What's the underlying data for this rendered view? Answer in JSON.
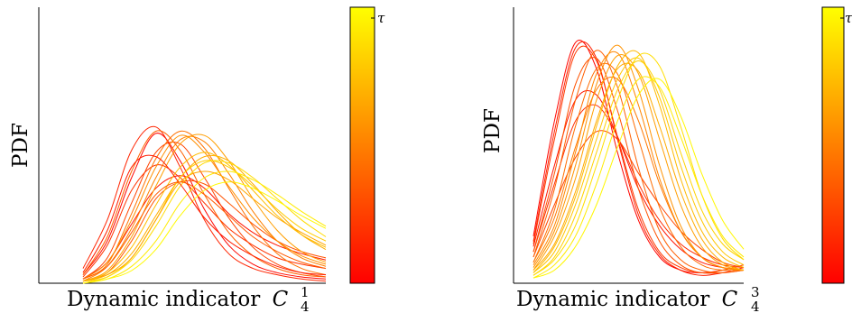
{
  "chart_data": [
    {
      "type": "line",
      "ylabel": "PDF",
      "xlabel": "Dynamic indicator",
      "xlabel_symbol": "C",
      "xlabel_subscript": "4",
      "xlabel_superscript": "1",
      "colorbar_label": "τ",
      "colormap": [
        "#ff0000",
        "#ff8000",
        "#ffff00"
      ],
      "grid": false,
      "x": [
        0,
        0.1,
        0.2,
        0.3,
        0.4,
        0.5,
        0.6,
        0.7,
        0.8,
        0.9,
        1
      ],
      "ylim": [
        0,
        1
      ],
      "series_tau": [
        0.02,
        0.08,
        0.14,
        0.2,
        0.26,
        0.32,
        0.38,
        0.44,
        0.5,
        0.56,
        0.62,
        0.68,
        0.74,
        0.8,
        0.86,
        0.92,
        0.98,
        0.11,
        0.35,
        0.65
      ],
      "series": [
        {
          "values": [
            0.04,
            0.2,
            0.5,
            0.71,
            0.58,
            0.35,
            0.18,
            0.09,
            0.05,
            0.03,
            0.02
          ]
        },
        {
          "values": [
            0.02,
            0.1,
            0.28,
            0.45,
            0.51,
            0.45,
            0.33,
            0.24,
            0.18,
            0.14,
            0.11
          ]
        },
        {
          "values": [
            0.07,
            0.3,
            0.63,
            0.74,
            0.55,
            0.3,
            0.14,
            0.07,
            0.04,
            0.02,
            0.01
          ]
        },
        {
          "values": [
            0.03,
            0.18,
            0.44,
            0.56,
            0.5,
            0.38,
            0.26,
            0.18,
            0.12,
            0.09,
            0.07
          ]
        },
        {
          "values": [
            0.02,
            0.12,
            0.38,
            0.62,
            0.66,
            0.5,
            0.31,
            0.17,
            0.09,
            0.05,
            0.03
          ]
        },
        {
          "values": [
            0.01,
            0.05,
            0.2,
            0.4,
            0.48,
            0.47,
            0.38,
            0.28,
            0.2,
            0.15,
            0.12
          ]
        },
        {
          "values": [
            0.04,
            0.22,
            0.53,
            0.72,
            0.63,
            0.42,
            0.24,
            0.13,
            0.07,
            0.04,
            0.03
          ]
        },
        {
          "values": [
            0.02,
            0.09,
            0.33,
            0.59,
            0.72,
            0.64,
            0.45,
            0.27,
            0.14,
            0.07,
            0.04
          ]
        },
        {
          "values": [
            0.01,
            0.08,
            0.26,
            0.5,
            0.68,
            0.67,
            0.52,
            0.34,
            0.2,
            0.12,
            0.08
          ]
        },
        {
          "values": [
            0.02,
            0.1,
            0.3,
            0.55,
            0.7,
            0.62,
            0.46,
            0.31,
            0.2,
            0.13,
            0.09
          ]
        },
        {
          "values": [
            0.01,
            0.06,
            0.22,
            0.46,
            0.66,
            0.7,
            0.58,
            0.4,
            0.25,
            0.15,
            0.1
          ]
        },
        {
          "values": [
            0.01,
            0.04,
            0.14,
            0.32,
            0.5,
            0.6,
            0.58,
            0.47,
            0.34,
            0.23,
            0.16
          ]
        },
        {
          "values": [
            0.01,
            0.05,
            0.17,
            0.37,
            0.55,
            0.62,
            0.56,
            0.44,
            0.32,
            0.23,
            0.17
          ]
        },
        {
          "values": [
            0.01,
            0.03,
            0.12,
            0.3,
            0.5,
            0.58,
            0.55,
            0.46,
            0.35,
            0.26,
            0.2
          ]
        },
        {
          "values": [
            0.0,
            0.03,
            0.11,
            0.27,
            0.46,
            0.57,
            0.57,
            0.5,
            0.4,
            0.3,
            0.22
          ]
        },
        {
          "values": [
            0.0,
            0.02,
            0.08,
            0.2,
            0.38,
            0.5,
            0.53,
            0.49,
            0.42,
            0.34,
            0.27
          ]
        },
        {
          "values": [
            0.0,
            0.02,
            0.06,
            0.16,
            0.32,
            0.44,
            0.48,
            0.45,
            0.39,
            0.32,
            0.26
          ]
        },
        {
          "values": [
            0.05,
            0.25,
            0.55,
            0.6,
            0.47,
            0.31,
            0.2,
            0.13,
            0.08,
            0.05,
            0.04
          ]
        },
        {
          "values": [
            0.02,
            0.08,
            0.24,
            0.42,
            0.48,
            0.42,
            0.32,
            0.22,
            0.15,
            0.1,
            0.07
          ]
        },
        {
          "values": [
            0.01,
            0.04,
            0.12,
            0.3,
            0.48,
            0.53,
            0.49,
            0.4,
            0.31,
            0.24,
            0.18
          ]
        }
      ]
    },
    {
      "type": "line",
      "ylabel": "PDF",
      "xlabel": "Dynamic indicator",
      "xlabel_symbol": "C",
      "xlabel_subscript": "4",
      "xlabel_superscript": "3",
      "colorbar_label": "τ",
      "colormap": [
        "#ff0000",
        "#ff8000",
        "#ffff00"
      ],
      "grid": false,
      "x": [
        0,
        0.1,
        0.2,
        0.3,
        0.4,
        0.5,
        0.6,
        0.7,
        0.8,
        0.9,
        1
      ],
      "ylim": [
        0,
        1
      ],
      "series_tau": [
        0.02,
        0.07,
        0.12,
        0.17,
        0.22,
        0.27,
        0.32,
        0.37,
        0.42,
        0.47,
        0.52,
        0.57,
        0.62,
        0.67,
        0.72,
        0.77,
        0.82,
        0.87,
        0.92,
        0.97
      ],
      "series": [
        {
          "values": [
            0.18,
            0.62,
            0.92,
            0.82,
            0.5,
            0.24,
            0.1,
            0.05,
            0.04,
            0.05,
            0.07
          ]
        },
        {
          "values": [
            0.14,
            0.45,
            0.7,
            0.72,
            0.56,
            0.36,
            0.22,
            0.13,
            0.08,
            0.06,
            0.05
          ]
        },
        {
          "values": [
            0.16,
            0.58,
            0.9,
            0.86,
            0.55,
            0.26,
            0.11,
            0.05,
            0.03,
            0.04,
            0.06
          ]
        },
        {
          "values": [
            0.12,
            0.38,
            0.62,
            0.68,
            0.56,
            0.38,
            0.24,
            0.15,
            0.1,
            0.07,
            0.06
          ]
        },
        {
          "values": [
            0.15,
            0.55,
            0.88,
            0.85,
            0.56,
            0.28,
            0.12,
            0.06,
            0.04,
            0.04,
            0.05
          ]
        },
        {
          "values": [
            0.1,
            0.3,
            0.48,
            0.58,
            0.55,
            0.42,
            0.3,
            0.2,
            0.13,
            0.08,
            0.06
          ]
        },
        {
          "values": [
            0.12,
            0.42,
            0.76,
            0.86,
            0.66,
            0.36,
            0.16,
            0.07,
            0.04,
            0.05,
            0.07
          ]
        },
        {
          "values": [
            0.1,
            0.36,
            0.7,
            0.89,
            0.75,
            0.44,
            0.2,
            0.09,
            0.05,
            0.04,
            0.05
          ]
        },
        {
          "values": [
            0.08,
            0.28,
            0.6,
            0.82,
            0.8,
            0.55,
            0.29,
            0.14,
            0.07,
            0.05,
            0.05
          ]
        },
        {
          "values": [
            0.08,
            0.25,
            0.52,
            0.74,
            0.78,
            0.62,
            0.38,
            0.2,
            0.1,
            0.06,
            0.05
          ]
        },
        {
          "values": [
            0.07,
            0.22,
            0.5,
            0.8,
            0.88,
            0.68,
            0.4,
            0.2,
            0.1,
            0.06,
            0.05
          ]
        },
        {
          "values": [
            0.06,
            0.2,
            0.45,
            0.76,
            0.91,
            0.74,
            0.45,
            0.22,
            0.1,
            0.06,
            0.05
          ]
        },
        {
          "values": [
            0.05,
            0.18,
            0.4,
            0.7,
            0.87,
            0.8,
            0.55,
            0.3,
            0.14,
            0.07,
            0.05
          ]
        },
        {
          "values": [
            0.05,
            0.15,
            0.35,
            0.62,
            0.82,
            0.81,
            0.6,
            0.35,
            0.17,
            0.08,
            0.05
          ]
        },
        {
          "values": [
            0.04,
            0.14,
            0.33,
            0.6,
            0.83,
            0.88,
            0.68,
            0.4,
            0.2,
            0.1,
            0.06
          ]
        },
        {
          "values": [
            0.04,
            0.12,
            0.3,
            0.55,
            0.78,
            0.86,
            0.71,
            0.45,
            0.24,
            0.12,
            0.07
          ]
        },
        {
          "values": [
            0.03,
            0.1,
            0.26,
            0.5,
            0.74,
            0.85,
            0.74,
            0.5,
            0.28,
            0.15,
            0.09
          ]
        },
        {
          "values": [
            0.03,
            0.09,
            0.22,
            0.45,
            0.7,
            0.87,
            0.83,
            0.6,
            0.34,
            0.17,
            0.09
          ]
        },
        {
          "values": [
            0.02,
            0.07,
            0.18,
            0.38,
            0.62,
            0.78,
            0.75,
            0.56,
            0.34,
            0.18,
            0.1
          ]
        },
        {
          "values": [
            0.02,
            0.05,
            0.14,
            0.3,
            0.52,
            0.72,
            0.78,
            0.64,
            0.42,
            0.24,
            0.13
          ]
        }
      ]
    }
  ]
}
